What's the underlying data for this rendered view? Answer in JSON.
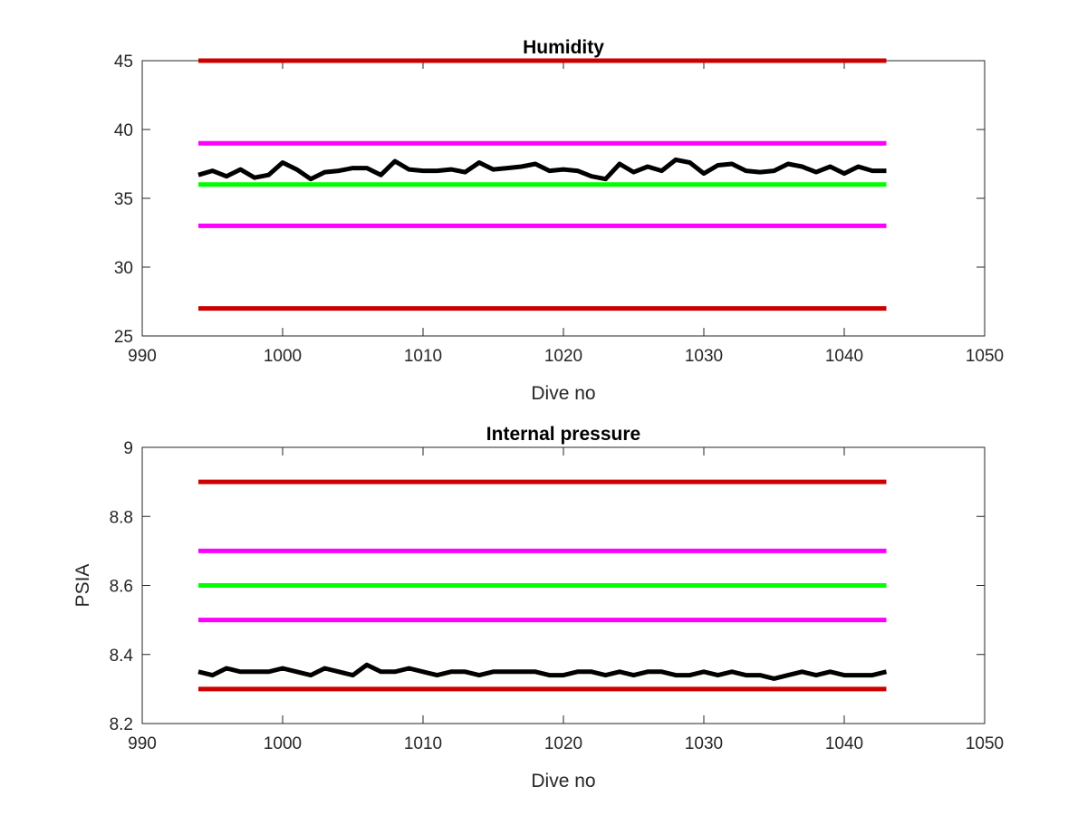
{
  "chart_data": [
    {
      "type": "line",
      "title": "Humidity",
      "xlabel": "Dive no",
      "ylabel": "",
      "xlim": [
        990,
        1050
      ],
      "ylim": [
        25,
        45
      ],
      "xticks": [
        990,
        1000,
        1010,
        1020,
        1030,
        1040,
        1050
      ],
      "yticks": [
        25,
        30,
        35,
        40,
        45
      ],
      "xtick_labels": [
        "990",
        "1000",
        "1010",
        "1020",
        "1030",
        "1040",
        "1050"
      ],
      "ytick_labels": [
        "25",
        "30",
        "35",
        "40",
        "45"
      ],
      "grid": false,
      "series": [
        {
          "values": [
            45,
            45
          ],
          "x": [
            994,
            1043
          ],
          "color": "#cc0000",
          "kind": "limit"
        },
        {
          "values": [
            39,
            39
          ],
          "x": [
            994,
            1043
          ],
          "color": "#ff00ff",
          "kind": "limit"
        },
        {
          "values": [
            36,
            36
          ],
          "x": [
            994,
            1043
          ],
          "color": "#00ff00",
          "kind": "limit"
        },
        {
          "values": [
            33,
            33
          ],
          "x": [
            994,
            1043
          ],
          "color": "#ff00ff",
          "kind": "limit"
        },
        {
          "values": [
            27,
            27
          ],
          "x": [
            994,
            1043
          ],
          "color": "#cc0000",
          "kind": "limit"
        },
        {
          "color": "#000000",
          "kind": "data",
          "x": [
            994,
            995,
            996,
            997,
            998,
            999,
            1000,
            1001,
            1002,
            1003,
            1004,
            1005,
            1006,
            1007,
            1008,
            1009,
            1010,
            1011,
            1012,
            1013,
            1014,
            1015,
            1016,
            1017,
            1018,
            1019,
            1020,
            1021,
            1022,
            1023,
            1024,
            1025,
            1026,
            1027,
            1028,
            1029,
            1030,
            1031,
            1032,
            1033,
            1034,
            1035,
            1036,
            1037,
            1038,
            1039,
            1040,
            1041,
            1042,
            1043
          ],
          "values": [
            36.7,
            37.0,
            36.6,
            37.1,
            36.5,
            36.7,
            37.6,
            37.1,
            36.4,
            36.9,
            37.0,
            37.2,
            37.2,
            36.7,
            37.7,
            37.1,
            37.0,
            37.0,
            37.1,
            36.9,
            37.6,
            37.1,
            37.2,
            37.3,
            37.5,
            37.0,
            37.1,
            37.0,
            36.6,
            36.4,
            37.5,
            36.9,
            37.3,
            37.0,
            37.8,
            37.6,
            36.8,
            37.4,
            37.5,
            37.0,
            36.9,
            37.0,
            37.5,
            37.3,
            36.9,
            37.3,
            36.8,
            37.3,
            37.0,
            37.0
          ]
        }
      ]
    },
    {
      "type": "line",
      "title": "Internal pressure",
      "xlabel": "Dive no",
      "ylabel": "PSIA",
      "xlim": [
        990,
        1050
      ],
      "ylim": [
        8.2,
        9.0
      ],
      "xticks": [
        990,
        1000,
        1010,
        1020,
        1030,
        1040,
        1050
      ],
      "yticks": [
        8.2,
        8.4,
        8.6,
        8.8,
        9.0
      ],
      "xtick_labels": [
        "990",
        "1000",
        "1010",
        "1020",
        "1030",
        "1040",
        "1050"
      ],
      "ytick_labels": [
        "8.2",
        "8.4",
        "8.6",
        "8.8",
        "9"
      ],
      "grid": false,
      "series": [
        {
          "values": [
            8.9,
            8.9
          ],
          "x": [
            994,
            1043
          ],
          "color": "#cc0000",
          "kind": "limit"
        },
        {
          "values": [
            8.7,
            8.7
          ],
          "x": [
            994,
            1043
          ],
          "color": "#ff00ff",
          "kind": "limit"
        },
        {
          "values": [
            8.6,
            8.6
          ],
          "x": [
            994,
            1043
          ],
          "color": "#00ff00",
          "kind": "limit"
        },
        {
          "values": [
            8.5,
            8.5
          ],
          "x": [
            994,
            1043
          ],
          "color": "#ff00ff",
          "kind": "limit"
        },
        {
          "values": [
            8.3,
            8.3
          ],
          "x": [
            994,
            1043
          ],
          "color": "#cc0000",
          "kind": "limit"
        },
        {
          "color": "#000000",
          "kind": "data",
          "x": [
            994,
            995,
            996,
            997,
            998,
            999,
            1000,
            1001,
            1002,
            1003,
            1004,
            1005,
            1006,
            1007,
            1008,
            1009,
            1010,
            1011,
            1012,
            1013,
            1014,
            1015,
            1016,
            1017,
            1018,
            1019,
            1020,
            1021,
            1022,
            1023,
            1024,
            1025,
            1026,
            1027,
            1028,
            1029,
            1030,
            1031,
            1032,
            1033,
            1034,
            1035,
            1036,
            1037,
            1038,
            1039,
            1040,
            1041,
            1042,
            1043
          ],
          "values": [
            8.35,
            8.34,
            8.36,
            8.35,
            8.35,
            8.35,
            8.36,
            8.35,
            8.34,
            8.36,
            8.35,
            8.34,
            8.37,
            8.35,
            8.35,
            8.36,
            8.35,
            8.34,
            8.35,
            8.35,
            8.34,
            8.35,
            8.35,
            8.35,
            8.35,
            8.34,
            8.34,
            8.35,
            8.35,
            8.34,
            8.35,
            8.34,
            8.35,
            8.35,
            8.34,
            8.34,
            8.35,
            8.34,
            8.35,
            8.34,
            8.34,
            8.33,
            8.34,
            8.35,
            8.34,
            8.35,
            8.34,
            8.34,
            8.34,
            8.35
          ]
        }
      ]
    }
  ]
}
